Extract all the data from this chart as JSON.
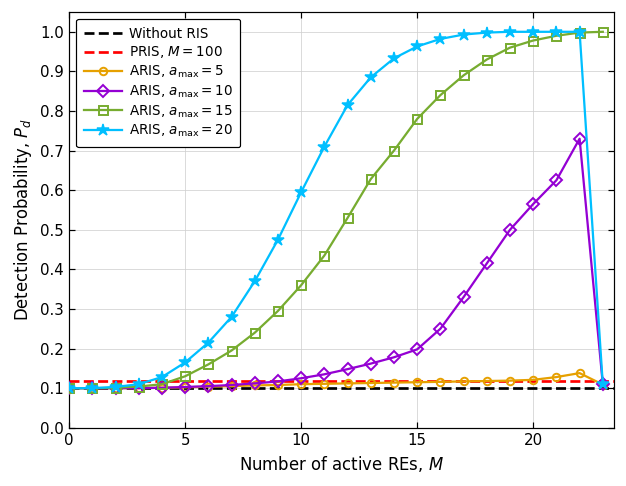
{
  "title": "",
  "xlabel": "Number of active REs, $M$",
  "ylabel": "Detection Probability, $P_d$",
  "xlim": [
    0,
    23.5
  ],
  "ylim": [
    0,
    1.05
  ],
  "xticks": [
    0,
    5,
    10,
    15,
    20
  ],
  "yticks": [
    0,
    0.1,
    0.2,
    0.3,
    0.4,
    0.5,
    0.6,
    0.7,
    0.8,
    0.9,
    1
  ],
  "without_ris": {
    "label": "Without RIS",
    "color": "#000000",
    "linestyle": "--",
    "linewidth": 1.8,
    "value": 0.1
  },
  "pris": {
    "label": "PRIS, $M = 100$",
    "color": "#ff0000",
    "linestyle": "--",
    "linewidth": 1.8,
    "value": 0.118
  },
  "aris_5": {
    "label": "ARIS, $a_{\\mathrm{max}} = 5$",
    "color": "#e6a000",
    "linestyle": "-",
    "linewidth": 1.5,
    "marker": "o",
    "markersize": 5,
    "x": [
      0,
      1,
      2,
      3,
      4,
      5,
      6,
      7,
      8,
      9,
      10,
      11,
      12,
      13,
      14,
      15,
      16,
      17,
      18,
      19,
      20,
      21,
      22,
      23
    ],
    "y": [
      0.1,
      0.1,
      0.1,
      0.1,
      0.101,
      0.102,
      0.104,
      0.105,
      0.107,
      0.108,
      0.11,
      0.111,
      0.112,
      0.113,
      0.114,
      0.115,
      0.116,
      0.117,
      0.118,
      0.119,
      0.121,
      0.128,
      0.138,
      0.109
    ]
  },
  "aris_10": {
    "label": "ARIS, $a_{\\mathrm{max}} = 10$",
    "color": "#9400d3",
    "linestyle": "-",
    "linewidth": 1.5,
    "marker": "D",
    "markersize": 6,
    "x": [
      0,
      1,
      2,
      3,
      4,
      5,
      6,
      7,
      8,
      9,
      10,
      11,
      12,
      13,
      14,
      15,
      16,
      17,
      18,
      19,
      20,
      21,
      22,
      23
    ],
    "y": [
      0.1,
      0.1,
      0.1,
      0.1,
      0.101,
      0.103,
      0.105,
      0.108,
      0.112,
      0.117,
      0.125,
      0.135,
      0.148,
      0.162,
      0.178,
      0.198,
      0.25,
      0.33,
      0.415,
      0.5,
      0.565,
      0.625,
      0.73,
      0.11
    ]
  },
  "aris_15": {
    "label": "ARIS, $a_{\\mathrm{max}} = 15$",
    "color": "#77ac30",
    "linestyle": "-",
    "linewidth": 1.5,
    "marker": "s",
    "markersize": 6,
    "x": [
      0,
      1,
      2,
      3,
      4,
      5,
      6,
      7,
      8,
      9,
      10,
      11,
      12,
      13,
      14,
      15,
      16,
      17,
      18,
      19,
      20,
      21,
      22,
      23
    ],
    "y": [
      0.1,
      0.1,
      0.101,
      0.104,
      0.11,
      0.13,
      0.16,
      0.195,
      0.24,
      0.295,
      0.36,
      0.435,
      0.53,
      0.628,
      0.7,
      0.78,
      0.84,
      0.89,
      0.93,
      0.96,
      0.978,
      0.99,
      0.998,
      1.0
    ]
  },
  "aris_20": {
    "label": "ARIS, $a_{\\mathrm{max}} = 20$",
    "color": "#00bfff",
    "linestyle": "-",
    "linewidth": 1.5,
    "marker": "*",
    "markersize": 8,
    "x": [
      0,
      1,
      2,
      3,
      4,
      5,
      6,
      7,
      8,
      9,
      10,
      11,
      12,
      13,
      14,
      15,
      16,
      17,
      18,
      19,
      20,
      21,
      22,
      23
    ],
    "y": [
      0.1,
      0.1,
      0.103,
      0.11,
      0.128,
      0.165,
      0.215,
      0.28,
      0.37,
      0.475,
      0.595,
      0.71,
      0.815,
      0.885,
      0.933,
      0.963,
      0.982,
      0.993,
      0.998,
      1.0,
      1.0,
      1.0,
      1.0,
      0.11
    ]
  }
}
